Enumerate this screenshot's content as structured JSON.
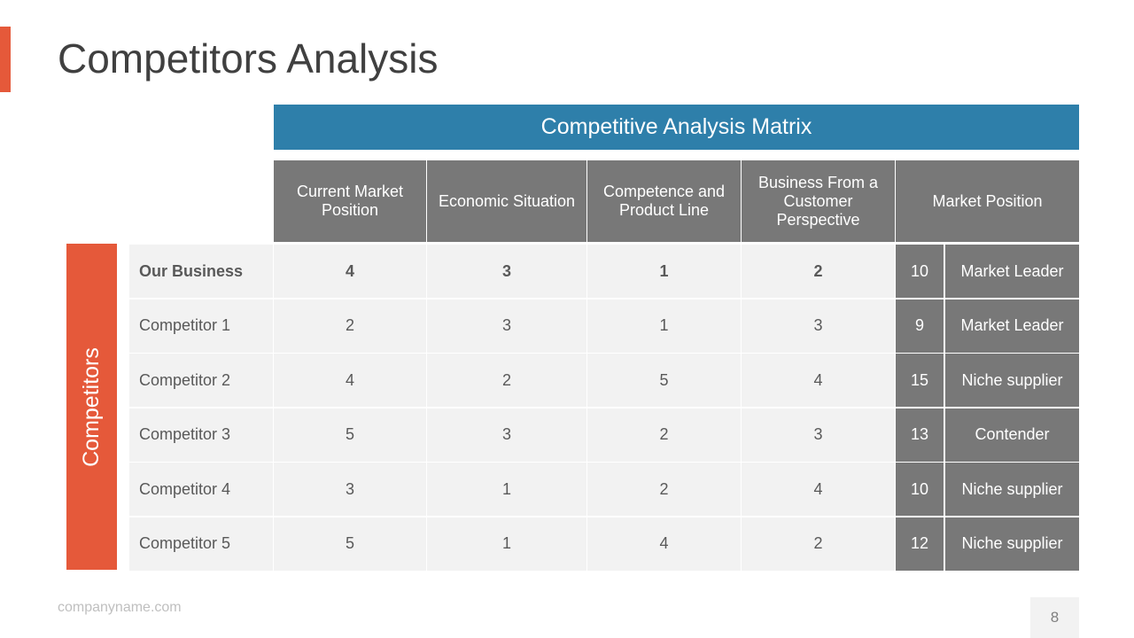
{
  "title": "Competitors Analysis",
  "matrix_title": "Competitive Analysis Matrix",
  "side_label": "Competitors",
  "columns": [
    "Current Market Position",
    "Economic Situation",
    "Competence and Product Line",
    "Business From a Customer Perspective",
    "Market Position"
  ],
  "rows": [
    {
      "name": "Our Business",
      "values": [
        "4",
        "3",
        "1",
        "2"
      ],
      "total": "10",
      "position": "Market Leader",
      "highlight": true
    },
    {
      "name": "Competitor 1",
      "values": [
        "2",
        "3",
        "1",
        "3"
      ],
      "total": "9",
      "position": "Market Leader",
      "highlight": false
    },
    {
      "name": "Competitor 2",
      "values": [
        "4",
        "2",
        "5",
        "4"
      ],
      "total": "15",
      "position": "Niche supplier",
      "highlight": false
    },
    {
      "name": "Competitor 3",
      "values": [
        "5",
        "3",
        "2",
        "3"
      ],
      "total": "13",
      "position": "Contender",
      "highlight": false
    },
    {
      "name": "Competitor 4",
      "values": [
        "3",
        "1",
        "2",
        "4"
      ],
      "total": "10",
      "position": "Niche supplier",
      "highlight": false
    },
    {
      "name": "Competitor 5",
      "values": [
        "5",
        "1",
        "4",
        "2"
      ],
      "total": "12",
      "position": "Niche supplier",
      "highlight": false
    }
  ],
  "footer": "companyname.com",
  "page_number": "8",
  "colors": {
    "accent": "#E5593A",
    "header_blue": "#2E7FAA",
    "header_gray": "#787878",
    "cell_bg": "#F2F2F2"
  }
}
